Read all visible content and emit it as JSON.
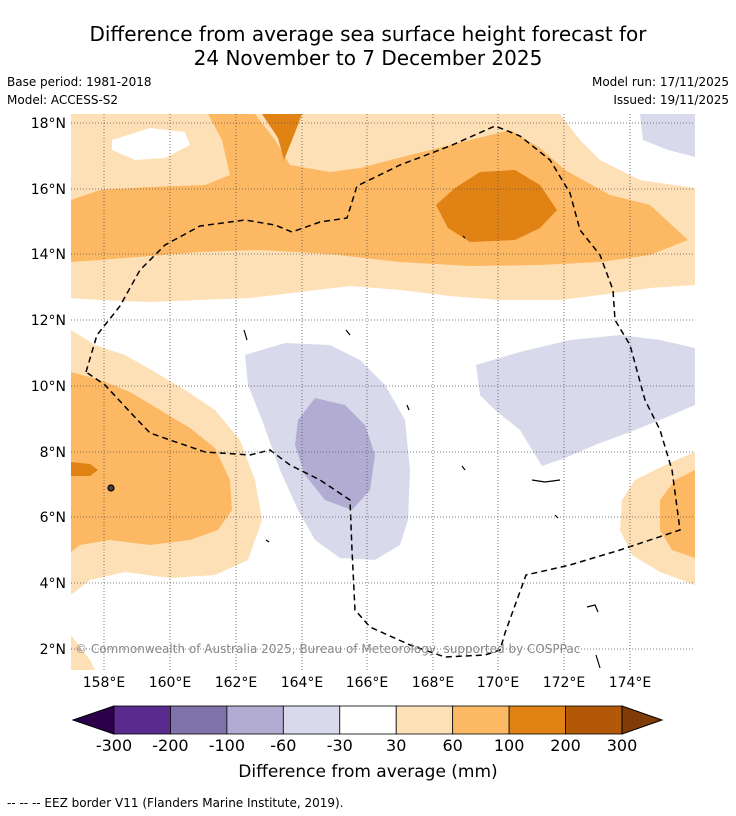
{
  "title_line1": "Difference from average sea surface height forecast for",
  "title_line2": "24 November to 7 December 2025",
  "base_period": "Base period: 1981-2018",
  "model": "Model: ACCESS-S2",
  "model_run": "Model run: 17/11/2025",
  "issued": "Issued: 19/11/2025",
  "copyright": "© Commonwealth of Australia 2025, Bureau of Meteorology, supported by COSPPac",
  "colorbar_label": "Difference from average (mm)",
  "footnote": "--  --  -- EEZ border V11 (Flanders Marine Institute, 2019).",
  "map": {
    "lon_ticks": [
      "158°E",
      "160°E",
      "162°E",
      "164°E",
      "166°E",
      "168°E",
      "170°E",
      "172°E",
      "174°E"
    ],
    "lat_ticks": [
      "18°N",
      "16°N",
      "14°N",
      "12°N",
      "10°N",
      "8°N",
      "6°N",
      "4°N",
      "2°N"
    ]
  },
  "colorbar": {
    "tick_labels": [
      "-300",
      "-200",
      "-100",
      "-60",
      "-30",
      "30",
      "60",
      "100",
      "200",
      "300"
    ],
    "colors": {
      "under": "#2d004b",
      "bins": [
        "#5b2a8f",
        "#8073ac",
        "#b2abd2",
        "#d8daeb",
        "#ffffff",
        "#fee0b6",
        "#fdb863",
        "#e08214",
        "#b35806"
      ],
      "over": "#7f3b08"
    }
  }
}
